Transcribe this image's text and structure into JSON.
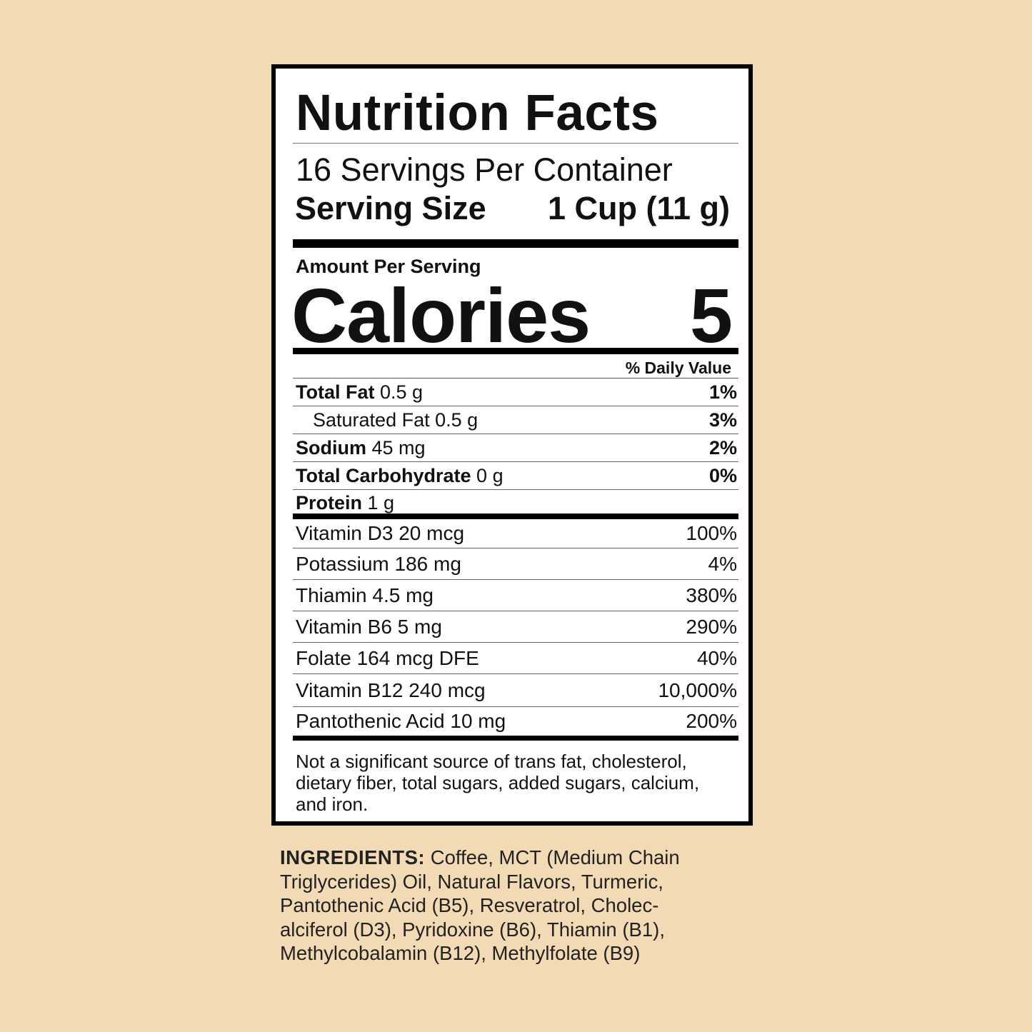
{
  "title": "Nutrition Facts",
  "servings_per_container": "16 Servings Per Container",
  "serving_size": {
    "label": "Serving Size",
    "value": "1 Cup (11 g)"
  },
  "amount_per_serving": "Amount Per Serving",
  "calories": {
    "label": "Calories",
    "value": 5
  },
  "daily_value_header": "% Daily Value",
  "nutrients": [
    {
      "name": "Total Fat",
      "amount": "0.5 g",
      "daily_value": "1%"
    },
    {
      "name": "Saturated Fat",
      "amount": "0.5 g",
      "daily_value": "3%"
    },
    {
      "name": "Sodium",
      "amount": "45 mg",
      "daily_value": "2%"
    },
    {
      "name": "Total Carbohydrate",
      "amount": "0 g",
      "daily_value": "0%"
    },
    {
      "name": "Protein",
      "amount": "1 g"
    }
  ],
  "vitamins": [
    {
      "label": "Vitamin D3 20 mcg",
      "daily_value": "100%"
    },
    {
      "label": "Potassium 186 mg",
      "daily_value": "4%"
    },
    {
      "label": "Thiamin 4.5 mg",
      "daily_value": "380%"
    },
    {
      "label": "Vitamin B6 5 mg",
      "daily_value": "290%"
    },
    {
      "label": "Folate 164 mcg DFE",
      "daily_value": "40%"
    },
    {
      "label": "Vitamin B12 240 mcg",
      "daily_value": "10,000%"
    },
    {
      "label": "Pantothenic Acid 10 mg",
      "daily_value": "200%"
    }
  ],
  "footnote": [
    "Not a significant source of trans fat, cholesterol,",
    "dietary fiber, total sugars, added sugars, calcium,",
    "and iron."
  ],
  "ingredients": {
    "label": "INGREDIENTS:",
    "lines": [
      "Coffee, MCT (Medium Chain",
      "Triglycerides) Oil, Natural Flavors, Turmeric,",
      "Pantothenic Acid (B5), Resveratrol, Cholec-",
      "alciferol (D3), Pyridoxine (B6), Thiamin (B1),",
      "Methylcobalamin (B12), Methylfolate (B9)"
    ]
  }
}
